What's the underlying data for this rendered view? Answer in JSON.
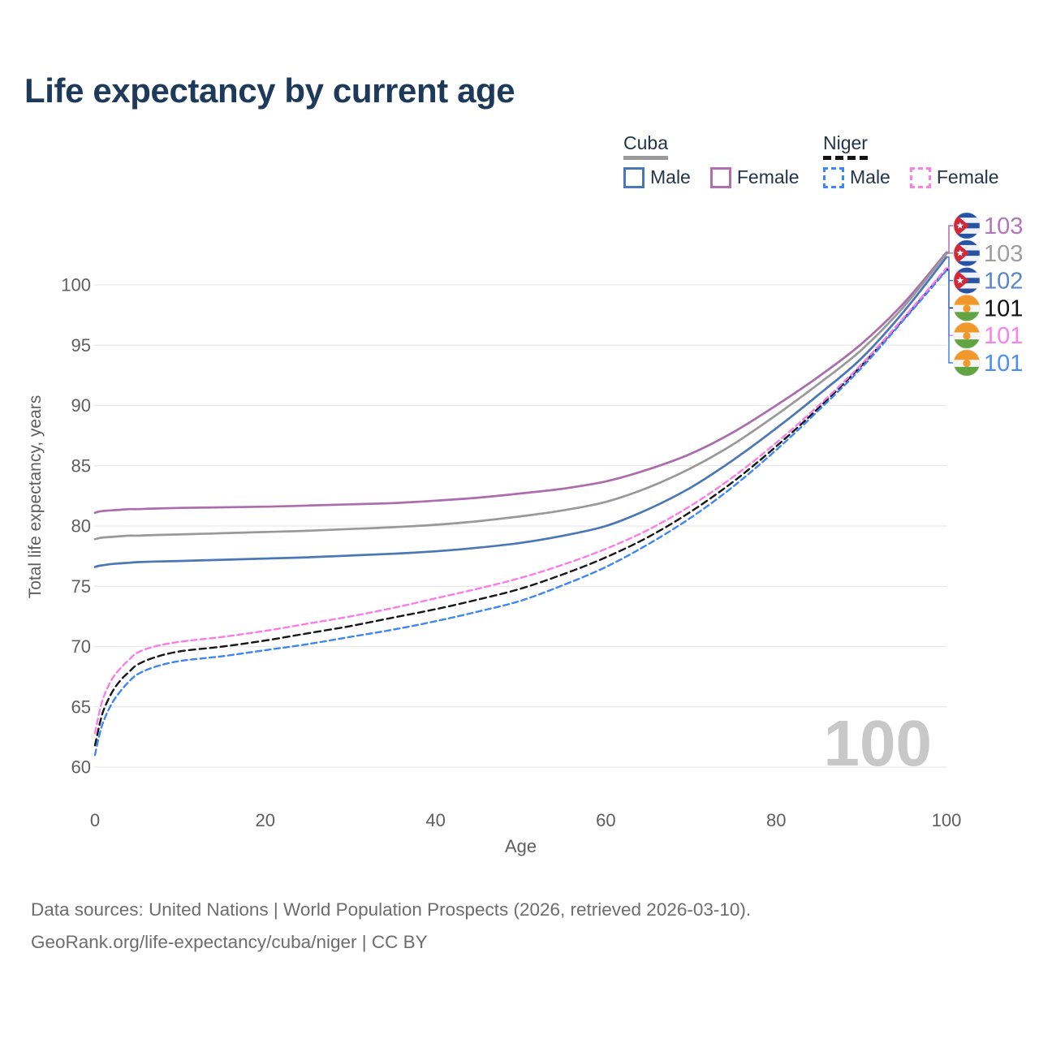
{
  "title": "Life expectancy by current age",
  "legend": {
    "groups": [
      {
        "name": "Cuba",
        "underline_style": "solid",
        "underline_color": "#9a9a9a",
        "items": [
          {
            "label": "Male",
            "color": "#4a77b5",
            "dash": false
          },
          {
            "label": "Female",
            "color": "#b06fae",
            "dash": false
          }
        ]
      },
      {
        "name": "Niger",
        "underline_style": "dashed",
        "underline_color": "#141414",
        "items": [
          {
            "label": "Male",
            "color": "#4187f2",
            "dash": true
          },
          {
            "label": "Female",
            "color": "#fc7fe8",
            "dash": true
          }
        ]
      }
    ]
  },
  "chart_data": {
    "type": "line",
    "title": "Life expectancy by current age",
    "xlabel": "Age",
    "ylabel": "Total life expectancy, years",
    "xlim": [
      0,
      100
    ],
    "ylim": [
      60,
      100
    ],
    "x_ticks": [
      0,
      20,
      40,
      60,
      80,
      100
    ],
    "y_ticks": [
      60,
      65,
      70,
      75,
      80,
      85,
      90,
      95,
      100
    ],
    "grid": "horizontal-only",
    "gridline_color": "#e9e9e9",
    "tick_label_color": "#5f5f5f",
    "watermark": "100",
    "watermark_color": "#c8c8c8",
    "x": [
      0,
      0.5,
      1,
      2,
      3,
      4,
      5,
      7,
      10,
      15,
      20,
      25,
      30,
      35,
      40,
      45,
      50,
      55,
      60,
      65,
      70,
      75,
      80,
      85,
      90,
      95,
      100
    ],
    "series": [
      {
        "key": "cuba-female",
        "name": "Cuba Female",
        "country": "Cuba",
        "group": "Female",
        "flag": "cuba",
        "color": "#ab6dab",
        "label_color": "#b476ba",
        "style": "solid",
        "end_label": "103",
        "values": [
          81.1,
          81.2,
          81.25,
          81.3,
          81.35,
          81.4,
          81.4,
          81.45,
          81.5,
          81.55,
          81.6,
          81.7,
          81.8,
          81.9,
          82.1,
          82.35,
          82.7,
          83.1,
          83.7,
          84.7,
          86.0,
          87.8,
          90.0,
          92.4,
          95.1,
          98.5,
          102.7
        ]
      },
      {
        "key": "cuba-total",
        "name": "Cuba Both sexes",
        "country": "Cuba",
        "group": "Both",
        "flag": "cuba",
        "color": "#999999",
        "label_color": "#9e9e9e",
        "style": "solid",
        "end_label": "103",
        "values": [
          78.9,
          79.0,
          79.05,
          79.1,
          79.15,
          79.2,
          79.2,
          79.25,
          79.3,
          79.4,
          79.5,
          79.6,
          79.75,
          79.9,
          80.1,
          80.4,
          80.8,
          81.3,
          82.0,
          83.2,
          84.8,
          86.8,
          89.2,
          91.8,
          94.6,
          98.2,
          102.6
        ]
      },
      {
        "key": "cuba-male",
        "name": "Cuba Male",
        "country": "Cuba",
        "group": "Male",
        "flag": "cuba",
        "color": "#4a77b5",
        "label_color": "#5b86cf",
        "style": "solid",
        "end_label": "102",
        "values": [
          76.6,
          76.7,
          76.75,
          76.85,
          76.9,
          76.95,
          77.0,
          77.05,
          77.1,
          77.2,
          77.3,
          77.4,
          77.55,
          77.7,
          77.9,
          78.2,
          78.6,
          79.2,
          80.0,
          81.4,
          83.2,
          85.5,
          88.1,
          90.9,
          93.9,
          97.8,
          102.3
        ]
      },
      {
        "key": "niger-total",
        "name": "Niger Both sexes",
        "country": "Niger",
        "group": "Both",
        "flag": "niger",
        "color": "#161616",
        "label_color": "#101010",
        "style": "dashed",
        "end_label": "101",
        "values": [
          61.8,
          63.4,
          64.7,
          66.2,
          67.2,
          67.9,
          68.5,
          69.1,
          69.6,
          70.0,
          70.5,
          71.1,
          71.7,
          72.4,
          73.1,
          73.9,
          74.8,
          76.0,
          77.4,
          79.1,
          81.2,
          83.7,
          86.6,
          89.8,
          93.3,
          97.2,
          101.3
        ]
      },
      {
        "key": "niger-female",
        "name": "Niger Female",
        "country": "Niger",
        "group": "Female",
        "flag": "niger",
        "color": "#fb7ce4",
        "label_color": "#fc80ea",
        "style": "dashed",
        "end_label": "101",
        "values": [
          62.8,
          64.5,
          65.8,
          67.3,
          68.2,
          68.9,
          69.5,
          70.0,
          70.4,
          70.8,
          71.3,
          71.9,
          72.5,
          73.2,
          74.0,
          74.8,
          75.7,
          76.8,
          78.1,
          79.7,
          81.7,
          84.1,
          86.9,
          90.0,
          93.4,
          97.3,
          101.4
        ]
      },
      {
        "key": "niger-male",
        "name": "Niger Male",
        "country": "Niger",
        "group": "Male",
        "flag": "niger",
        "color": "#3e86f4",
        "label_color": "#4b8cf7",
        "style": "dashed",
        "end_label": "101",
        "values": [
          61.0,
          62.6,
          63.8,
          65.3,
          66.3,
          67.1,
          67.7,
          68.3,
          68.8,
          69.2,
          69.7,
          70.2,
          70.8,
          71.4,
          72.1,
          72.9,
          73.8,
          75.1,
          76.6,
          78.5,
          80.7,
          83.3,
          86.3,
          89.6,
          93.1,
          97.1,
          101.2
        ]
      }
    ]
  },
  "footer": {
    "line1": "Data sources: United Nations | World Population Prospects (2026, retrieved 2026-03-10).",
    "line2": "GeoRank.org/life-expectancy/cuba/niger | CC BY"
  }
}
